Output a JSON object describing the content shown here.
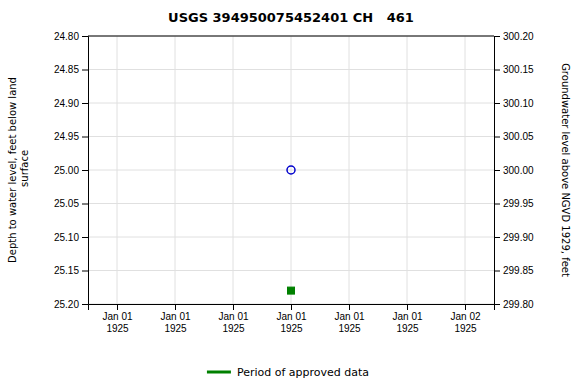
{
  "chart_data": {
    "type": "scatter",
    "title": "USGS 394950075452401 CH   461",
    "ylabel": "Depth to water level, feet below land\n surface",
    "y2label": "Groundwater level above NGVD 1929, feet",
    "categories": [
      "Jan 01\n1925",
      "Jan 01\n1925",
      "Jan 01\n1925",
      "Jan 01\n1925",
      "Jan 01\n1925",
      "Jan 01\n1925",
      "Jan 02\n1925"
    ],
    "series": [
      {
        "color": "#0000cc",
        "marker": "circle",
        "values": [
          null,
          null,
          null,
          25.0,
          null,
          null,
          null
        ]
      },
      {
        "name": "Period of approved data",
        "color": "#008000",
        "marker": "square",
        "values": [
          null,
          null,
          null,
          25.18,
          null,
          null,
          null
        ]
      }
    ],
    "ylim": [
      25.2,
      24.8
    ],
    "yticks": [
      {
        "value": 24.8,
        "label": "24.80"
      },
      24.85,
      {
        "value": 24.9,
        "label": "24.90"
      },
      24.95,
      {
        "value": 25.0,
        "label": "25.00"
      },
      25.05,
      {
        "value": 25.1,
        "label": "25.10"
      },
      25.15,
      {
        "value": 25.2,
        "label": "25.20"
      }
    ],
    "y2lim": [
      299.8,
      300.2
    ],
    "y2ticks": [
      {
        "value": 300.2,
        "label": "300.20"
      },
      300.15,
      {
        "value": 300.1,
        "label": "300.10"
      },
      300.05,
      {
        "value": 300.0,
        "label": "300.00"
      },
      299.95,
      {
        "value": 299.9,
        "label": "299.90"
      },
      299.85,
      {
        "value": 299.8,
        "label": "299.80"
      }
    ],
    "grid": true,
    "legend": "bottom"
  }
}
